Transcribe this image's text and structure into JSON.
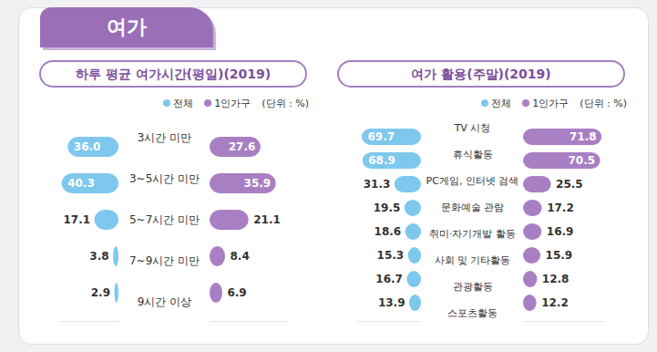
{
  "header": {
    "title": "여가"
  },
  "chart_data": [
    {
      "type": "bar",
      "orientation": "horizontal",
      "title": "하루 평균 여가시간(평일)(2019)",
      "subtitle": "(단위 : %)",
      "categories": [
        "3시간 미만",
        "3~5시간 미만",
        "5~7시간 미만",
        "7~9시간 미만",
        "9시간 이상"
      ],
      "series": [
        {
          "name": "전체",
          "color": "#7ec8ee",
          "values": [
            36.0,
            40.3,
            17.1,
            3.8,
            2.9
          ],
          "value_labels": [
            "36.0",
            "40.3",
            "17.1",
            "3.8",
            "2.9"
          ]
        },
        {
          "name": "1인가구",
          "color": "#a97fc4",
          "values": [
            27.6,
            35.9,
            21.1,
            8.4,
            6.9
          ],
          "value_labels": [
            "27.6",
            "35.9",
            "21.1",
            "8.4",
            "6.9"
          ]
        }
      ],
      "xlim": [
        0,
        42
      ],
      "xticks": [],
      "data_labels": true,
      "tick_labels": "y",
      "legend": "top"
    },
    {
      "type": "bar",
      "orientation": "horizontal",
      "title": "여가 활용(주말)(2019)",
      "subtitle": "(단위 : %)",
      "categories": [
        "TV 시청",
        "휴식활동",
        "PC게임, 인터넷 검색",
        "문화예술 관람",
        "취미·자기개발 활동",
        "사회 및 기타활동",
        "관광활동",
        "스포츠활동"
      ],
      "series": [
        {
          "name": "전체",
          "color": "#7ec8ee",
          "values": [
            69.7,
            68.9,
            31.3,
            19.5,
            18.6,
            15.3,
            16.7,
            13.9
          ],
          "value_labels": [
            "69.7",
            "68.9",
            "31.3",
            "19.5",
            "18.6",
            "15.3",
            "16.7",
            "13.9"
          ]
        },
        {
          "name": "1인가구",
          "color": "#a97fc4",
          "values": [
            71.8,
            70.5,
            25.5,
            17.2,
            16.9,
            15.9,
            12.8,
            12.2
          ],
          "value_labels": [
            "71.8",
            "70.5",
            "25.5",
            "17.2",
            "16.9",
            "15.9",
            "12.8",
            "12.2"
          ]
        }
      ],
      "xlim": [
        0,
        75
      ],
      "xticks": [],
      "data_labels": true,
      "tick_labels": "y",
      "legend": "top"
    }
  ]
}
